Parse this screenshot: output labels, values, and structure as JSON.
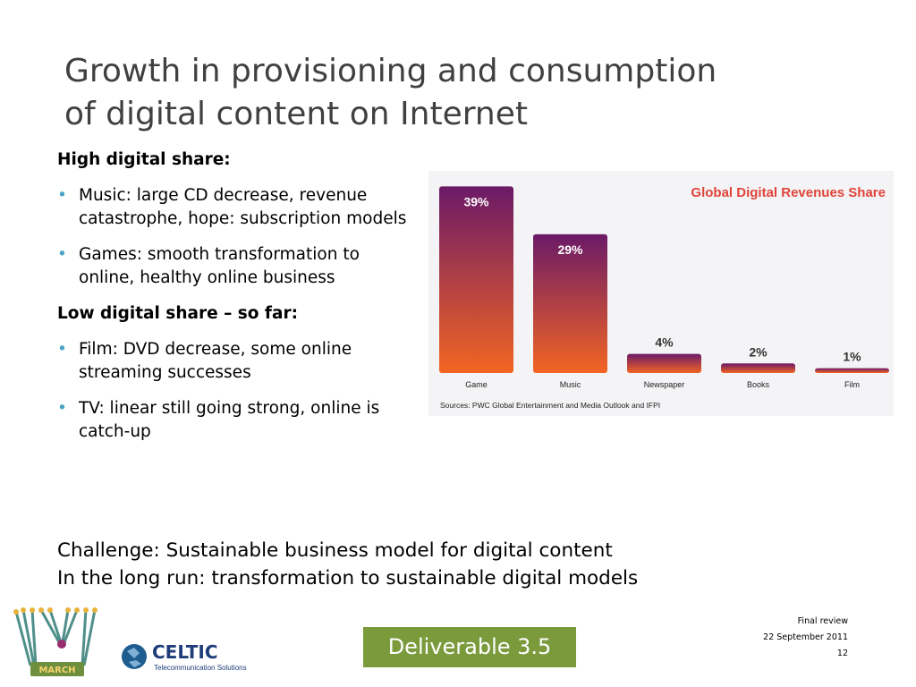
{
  "slide": {
    "title_line1": "Growth in provisioning and consumption",
    "title_line2": "of digital content on Internet"
  },
  "content": {
    "heading_high": "High digital share:",
    "bullets_high": [
      "Music: large CD decrease, revenue catastrophe, hope: subscription models",
      "Games: smooth transformation to online, healthy online business"
    ],
    "heading_low": "Low digital share – so far:",
    "bullets_low": [
      "Film: DVD decrease, some online streaming successes",
      "TV: linear still going strong, online is catch-up"
    ]
  },
  "challenge": {
    "line1": "Challenge: Sustainable business model for digital content",
    "line2": "In the long run: transformation to sustainable digital models"
  },
  "chart_data": {
    "type": "bar",
    "title": "Global Digital Revenues Share",
    "categories": [
      "Game",
      "Music",
      "Newspaper",
      "Books",
      "Film"
    ],
    "values": [
      39,
      29,
      4,
      2,
      1
    ],
    "value_labels": [
      "39%",
      "29%",
      "4%",
      "2%",
      "1%"
    ],
    "source": "Sources: PWC Global Entertainment and Media Outlook and IFPI",
    "ylim": [
      0,
      40
    ],
    "colors": {
      "bar_top": "#6b1a68",
      "bar_bottom": "#f26522",
      "title": "#e0443a"
    }
  },
  "footer": {
    "meeting": "Final review",
    "date": "22 September 2011",
    "page": "12",
    "deliverable": "Deliverable 3.5"
  },
  "logos": {
    "march": "MARCH",
    "celtic": "CELTIC",
    "celtic_tagline": "Telecommunication Solutions"
  }
}
